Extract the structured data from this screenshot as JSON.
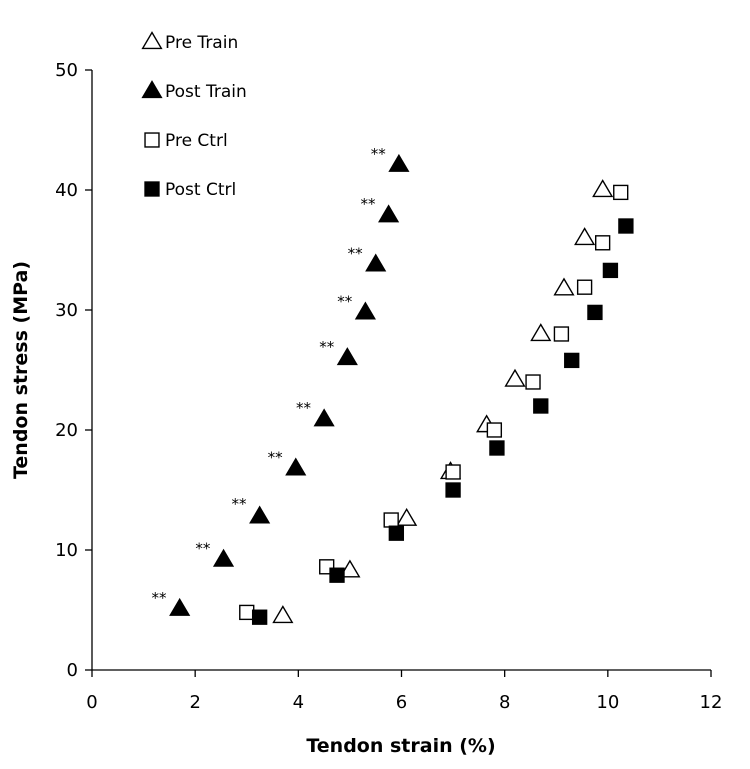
{
  "chart_data": {
    "type": "scatter",
    "xlabel": "Tendon strain (%)",
    "ylabel": "Tendon stress (MPa)",
    "xlim": [
      0,
      12
    ],
    "ylim": [
      0,
      50
    ],
    "xticks": [
      0,
      2,
      4,
      6,
      8,
      10,
      12
    ],
    "yticks": [
      0,
      10,
      20,
      30,
      40,
      50
    ],
    "grid": false,
    "legend": {
      "placement": "top-left",
      "orientation": "vertical"
    },
    "series": [
      {
        "name": "Pre Train",
        "marker": "open-triangle",
        "color": "#000000",
        "points": [
          {
            "x": 3.7,
            "y": 4.5
          },
          {
            "x": 5.0,
            "y": 8.3
          },
          {
            "x": 6.1,
            "y": 12.6
          },
          {
            "x": 6.95,
            "y": 16.5
          },
          {
            "x": 7.65,
            "y": 20.4
          },
          {
            "x": 8.2,
            "y": 24.2
          },
          {
            "x": 8.7,
            "y": 28.0
          },
          {
            "x": 9.15,
            "y": 31.8
          },
          {
            "x": 9.55,
            "y": 36.0
          },
          {
            "x": 9.9,
            "y": 40.0
          }
        ]
      },
      {
        "name": "Post Train",
        "marker": "filled-triangle",
        "color": "#000000",
        "points": [
          {
            "x": 1.7,
            "y": 5.1
          },
          {
            "x": 2.55,
            "y": 9.2
          },
          {
            "x": 3.25,
            "y": 12.8
          },
          {
            "x": 3.95,
            "y": 16.8
          },
          {
            "x": 4.5,
            "y": 20.9
          },
          {
            "x": 4.95,
            "y": 26.0
          },
          {
            "x": 5.3,
            "y": 29.8
          },
          {
            "x": 5.5,
            "y": 33.8
          },
          {
            "x": 5.75,
            "y": 37.9
          },
          {
            "x": 5.95,
            "y": 42.1
          }
        ]
      },
      {
        "name": "Pre Ctrl",
        "marker": "open-square",
        "color": "#000000",
        "points": [
          {
            "x": 3.0,
            "y": 4.8
          },
          {
            "x": 4.55,
            "y": 8.6
          },
          {
            "x": 5.8,
            "y": 12.5
          },
          {
            "x": 7.0,
            "y": 16.5
          },
          {
            "x": 7.8,
            "y": 20.0
          },
          {
            "x": 8.55,
            "y": 24.0
          },
          {
            "x": 9.1,
            "y": 28.0
          },
          {
            "x": 9.55,
            "y": 31.9
          },
          {
            "x": 9.9,
            "y": 35.6
          },
          {
            "x": 10.25,
            "y": 39.8
          }
        ]
      },
      {
        "name": "Post Ctrl",
        "marker": "filled-square",
        "color": "#000000",
        "points": [
          {
            "x": 3.25,
            "y": 4.4
          },
          {
            "x": 4.75,
            "y": 7.9
          },
          {
            "x": 5.9,
            "y": 11.4
          },
          {
            "x": 7.0,
            "y": 15.0
          },
          {
            "x": 7.85,
            "y": 18.5
          },
          {
            "x": 8.7,
            "y": 22.0
          },
          {
            "x": 9.3,
            "y": 25.8
          },
          {
            "x": 9.75,
            "y": 29.8
          },
          {
            "x": 10.05,
            "y": 33.3
          },
          {
            "x": 10.35,
            "y": 37.0
          }
        ]
      }
    ],
    "annotations": [
      {
        "text": "**",
        "x": 1.3,
        "y": 5.6
      },
      {
        "text": "**",
        "x": 2.15,
        "y": 9.7
      },
      {
        "text": "**",
        "x": 2.85,
        "y": 13.4
      },
      {
        "text": "**",
        "x": 3.55,
        "y": 17.3
      },
      {
        "text": "**",
        "x": 4.1,
        "y": 21.4
      },
      {
        "text": "**",
        "x": 4.55,
        "y": 26.5
      },
      {
        "text": "**",
        "x": 4.9,
        "y": 30.3
      },
      {
        "text": "**",
        "x": 5.1,
        "y": 34.3
      },
      {
        "text": "**",
        "x": 5.35,
        "y": 38.4
      },
      {
        "text": "**",
        "x": 5.55,
        "y": 42.6
      }
    ]
  }
}
